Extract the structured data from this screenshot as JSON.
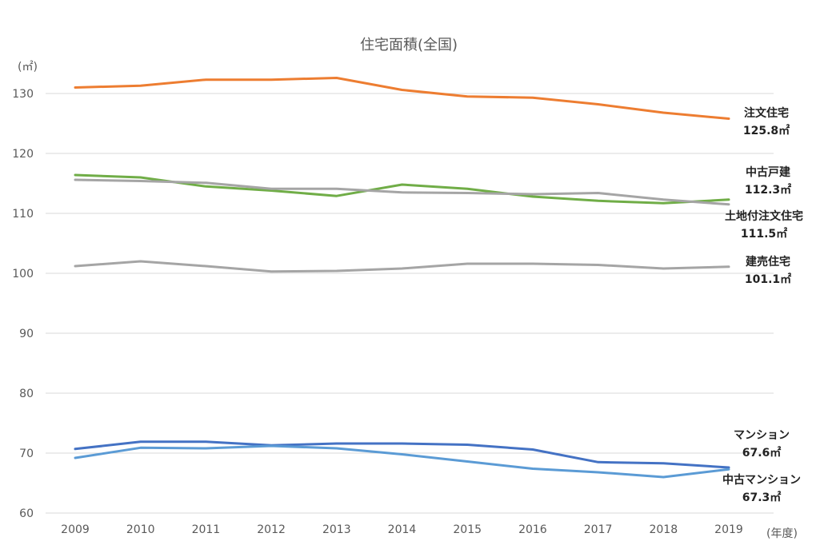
{
  "chart_data": {
    "type": "line",
    "title": "住宅面積(全国)",
    "y_unit_label": "(㎡)",
    "x_unit_label": "(年度)",
    "categories": [
      "2009",
      "2010",
      "2011",
      "2012",
      "2013",
      "2014",
      "2015",
      "2016",
      "2017",
      "2018",
      "2019"
    ],
    "ylim": [
      60,
      130
    ],
    "yticks": [
      "60",
      "70",
      "80",
      "90",
      "100",
      "110",
      "120",
      "130"
    ],
    "grid": true,
    "series": [
      {
        "name": "注文住宅",
        "end_label": "125.8㎡",
        "color": "#ed7d31",
        "values": [
          131.0,
          131.3,
          132.3,
          132.3,
          132.6,
          130.6,
          129.5,
          129.3,
          128.2,
          126.8,
          125.8
        ]
      },
      {
        "name": "中古戸建",
        "end_label": "112.3㎡",
        "color": "#70ad47",
        "values": [
          116.4,
          116.0,
          114.5,
          113.8,
          112.9,
          114.8,
          114.1,
          112.8,
          112.1,
          111.7,
          112.3
        ]
      },
      {
        "name": "土地付注文住宅",
        "end_label": "111.5㎡",
        "color": "#a5a5a5",
        "values": [
          115.6,
          115.4,
          115.1,
          114.1,
          114.1,
          113.5,
          113.4,
          113.2,
          113.4,
          112.3,
          111.5
        ]
      },
      {
        "name": "建売住宅",
        "end_label": "101.1㎡",
        "color": "#a5a5a5",
        "values": [
          101.2,
          102.0,
          101.2,
          100.3,
          100.4,
          100.8,
          101.6,
          101.6,
          101.4,
          100.8,
          101.1
        ]
      },
      {
        "name": "マンション",
        "end_label": "67.6㎡",
        "color": "#4472c4",
        "values": [
          70.7,
          71.9,
          71.9,
          71.3,
          71.6,
          71.6,
          71.4,
          70.6,
          68.5,
          68.3,
          67.6
        ]
      },
      {
        "name": "中古マンション",
        "end_label": "67.3㎡",
        "color": "#5b9bd5",
        "values": [
          69.2,
          70.9,
          70.8,
          71.2,
          70.8,
          69.8,
          68.6,
          67.4,
          66.8,
          66.0,
          67.3
        ]
      }
    ]
  }
}
